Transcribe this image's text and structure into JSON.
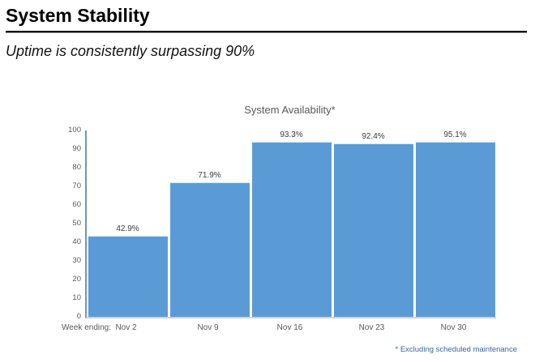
{
  "header": {
    "title": "System Stability",
    "subtitle": "Uptime is consistently surpassing 90%"
  },
  "chart_data": {
    "type": "bar",
    "title": "System Availability*",
    "categories": [
      "Nov 2",
      "Nov 9",
      "Nov 16",
      "Nov 23",
      "Nov 30"
    ],
    "values": [
      42.9,
      71.9,
      93.3,
      92.4,
      95.1
    ],
    "value_labels": [
      "42.9%",
      "71.9%",
      "93.3%",
      "92.4%",
      "95.1%"
    ],
    "x_axis_prefix": "Week ending:",
    "xlabel": "",
    "ylabel": "",
    "ylim": [
      0,
      100
    ],
    "yticks": [
      0,
      10,
      20,
      30,
      40,
      50,
      60,
      70,
      80,
      90,
      100
    ],
    "grid": false,
    "legend": false,
    "bar_color": "#5b9bd5",
    "footnote": "* Excluding scheduled maintenance"
  }
}
